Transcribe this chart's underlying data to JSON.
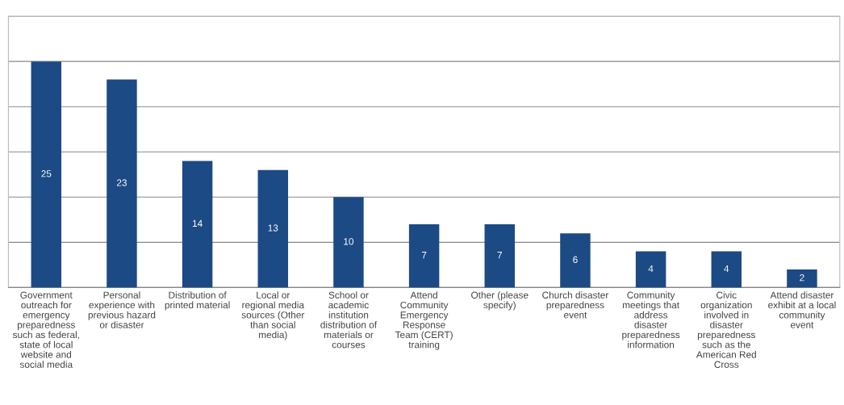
{
  "chart_data": {
    "type": "bar",
    "categories": [
      "Government\noutreach for\nemergency\npreparedness\nsuch as federal,\nstate of local\nwebsite and\nsocial media",
      "Personal\nexperience with\nprevious hazard\nor disaster",
      "Distribution of\nprinted material",
      "Local or\nregional media\nsources (Other\nthan social\nmedia)",
      "School or\nacademic\ninstitution\ndistribution of\nmaterials or\ncourses",
      "Attend\nCommunity\nEmergency\nResponse\nTeam (CERT)\ntraining",
      "Other (please\nspecify)",
      "Church disaster\npreparedness\nevent",
      "Community\nmeetings that\naddress\ndisaster\npreparedness\ninformation",
      "Civic\norganization\ninvolved in\ndisaster\npreparedness\nsuch as the\nAmerican Red\nCross",
      "Attend disaster\nexhibit at a local\ncommunity\nevent"
    ],
    "values": [
      25,
      23,
      14,
      13,
      10,
      7,
      7,
      6,
      4,
      4,
      2
    ],
    "color": "#1c4a84",
    "ylim": [
      0,
      30
    ],
    "yticks": [
      {
        "value": 0,
        "label": null
      },
      {
        "value": 5,
        "label": null
      },
      {
        "value": 10,
        "label": null
      },
      {
        "value": 15,
        "label": null
      },
      {
        "value": 20,
        "label": null
      },
      {
        "value": 25,
        "label": null
      },
      {
        "value": 30,
        "label": null
      }
    ],
    "tick_labels": "x",
    "grid": "y",
    "data_labels": true,
    "legend": false
  }
}
